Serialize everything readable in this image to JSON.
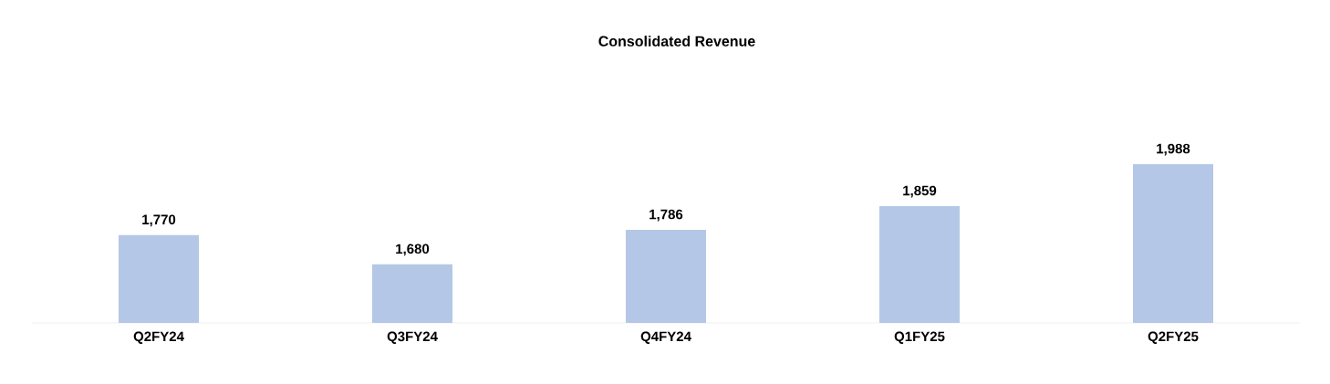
{
  "chart_data": {
    "type": "bar",
    "title": "Consolidated Revenue",
    "categories": [
      "Q2FY24",
      "Q3FY24",
      "Q4FY24",
      "Q1FY25",
      "Q2FY25"
    ],
    "values": [
      1770,
      1680,
      1786,
      1859,
      1988
    ],
    "value_labels": [
      "1,770",
      "1,680",
      "1,786",
      "1,859",
      "1,988"
    ],
    "color": "#b4c7e7",
    "ylim": [
      1500,
      1988
    ]
  }
}
